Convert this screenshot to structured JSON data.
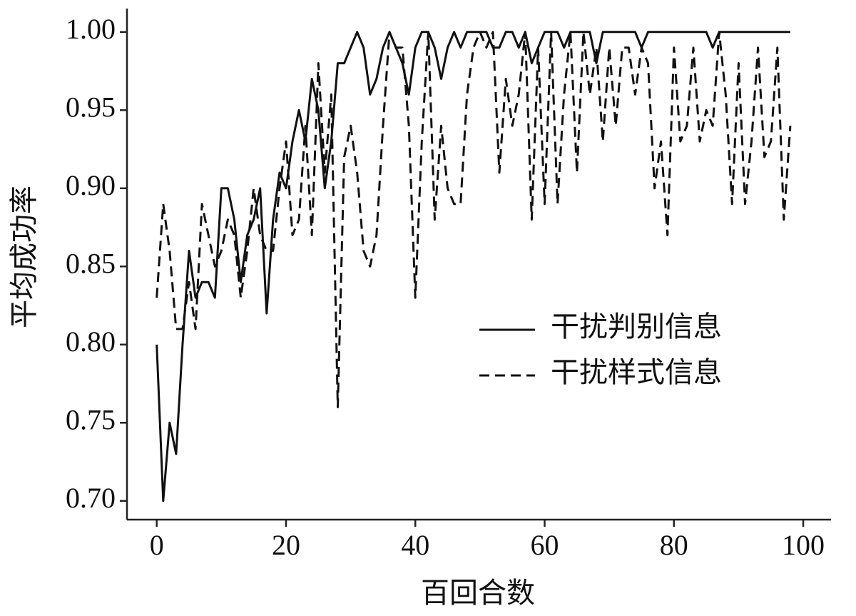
{
  "chart_data": {
    "type": "line",
    "xlabel": "百回合数",
    "ylabel": "平均成功率",
    "x": [
      0,
      1,
      2,
      3,
      4,
      5,
      6,
      7,
      8,
      9,
      10,
      11,
      12,
      13,
      14,
      15,
      16,
      17,
      18,
      19,
      20,
      21,
      22,
      23,
      24,
      25,
      26,
      27,
      28,
      29,
      30,
      31,
      32,
      33,
      34,
      35,
      36,
      37,
      38,
      39,
      40,
      41,
      42,
      43,
      44,
      45,
      46,
      47,
      48,
      49,
      50,
      51,
      52,
      53,
      54,
      55,
      56,
      57,
      58,
      59,
      60,
      61,
      62,
      63,
      64,
      65,
      66,
      67,
      68,
      69,
      70,
      71,
      72,
      73,
      74,
      75,
      76,
      77,
      78,
      79,
      80,
      81,
      82,
      83,
      84,
      85,
      86,
      87,
      88,
      89,
      90,
      91,
      92,
      93,
      94,
      95,
      96,
      97,
      98
    ],
    "series": [
      {
        "name": "干扰判别信息",
        "color": "#111111",
        "dash": false,
        "values": [
          0.8,
          0.7,
          0.75,
          0.73,
          0.8,
          0.86,
          0.83,
          0.84,
          0.84,
          0.83,
          0.9,
          0.9,
          0.88,
          0.84,
          0.87,
          0.88,
          0.9,
          0.82,
          0.88,
          0.91,
          0.9,
          0.93,
          0.95,
          0.93,
          0.97,
          0.95,
          0.9,
          0.93,
          0.98,
          0.98,
          0.99,
          1.0,
          0.99,
          0.96,
          0.97,
          0.99,
          1.0,
          0.99,
          0.98,
          0.96,
          0.99,
          1.0,
          1.0,
          0.99,
          0.97,
          0.99,
          1.0,
          0.99,
          1.0,
          1.0,
          1.0,
          1.0,
          0.99,
          0.99,
          1.0,
          1.0,
          0.99,
          1.0,
          0.98,
          0.99,
          1.0,
          1.0,
          1.0,
          0.99,
          1.0,
          1.0,
          1.0,
          1.0,
          0.98,
          1.0,
          1.0,
          1.0,
          1.0,
          1.0,
          1.0,
          0.99,
          1.0,
          1.0,
          1.0,
          1.0,
          1.0,
          1.0,
          1.0,
          1.0,
          1.0,
          1.0,
          0.99,
          1.0,
          1.0,
          1.0,
          1.0,
          1.0,
          1.0,
          1.0,
          1.0,
          1.0,
          1.0,
          1.0,
          1.0
        ]
      },
      {
        "name": "干扰样式信息",
        "color": "#111111",
        "dash": true,
        "values": [
          0.83,
          0.89,
          0.86,
          0.81,
          0.81,
          0.84,
          0.81,
          0.89,
          0.87,
          0.85,
          0.86,
          0.88,
          0.87,
          0.83,
          0.86,
          0.9,
          0.87,
          0.86,
          0.86,
          0.9,
          0.93,
          0.87,
          0.88,
          0.94,
          0.87,
          0.98,
          0.91,
          0.96,
          0.76,
          0.92,
          0.94,
          0.91,
          0.86,
          0.85,
          0.87,
          0.94,
          1.0,
          0.99,
          0.99,
          0.94,
          0.83,
          0.93,
          1.0,
          0.88,
          0.94,
          0.9,
          0.89,
          0.89,
          0.96,
          0.99,
          1.0,
          0.99,
          1.0,
          0.91,
          0.97,
          0.94,
          0.96,
          1.0,
          0.88,
          0.99,
          0.89,
          1.0,
          0.89,
          0.96,
          1.0,
          0.91,
          1.0,
          0.96,
          0.99,
          0.93,
          0.99,
          0.94,
          0.99,
          0.99,
          0.96,
          0.99,
          0.98,
          0.9,
          0.93,
          0.87,
          0.99,
          0.93,
          0.94,
          0.99,
          0.93,
          0.95,
          0.94,
          1.0,
          0.96,
          0.89,
          0.98,
          0.89,
          0.93,
          0.99,
          0.92,
          0.93,
          0.99,
          0.88,
          0.94
        ]
      }
    ],
    "xlim": [
      -4.6,
      104.3
    ],
    "xticks": [
      0,
      20,
      40,
      60,
      80,
      100
    ],
    "ylim": [
      0.688,
      1.015
    ],
    "yticks": [
      {
        "value": 0.7,
        "label": "0.70"
      },
      {
        "value": 0.75,
        "label": "0.75"
      },
      {
        "value": 0.8,
        "label": "0.80"
      },
      {
        "value": 0.85,
        "label": "0.85"
      },
      {
        "value": 0.9,
        "label": "0.90"
      },
      {
        "value": 0.95,
        "label": "0.95"
      },
      {
        "value": 1.0,
        "label": "1.00"
      }
    ],
    "grid": false,
    "legend": "center right"
  }
}
